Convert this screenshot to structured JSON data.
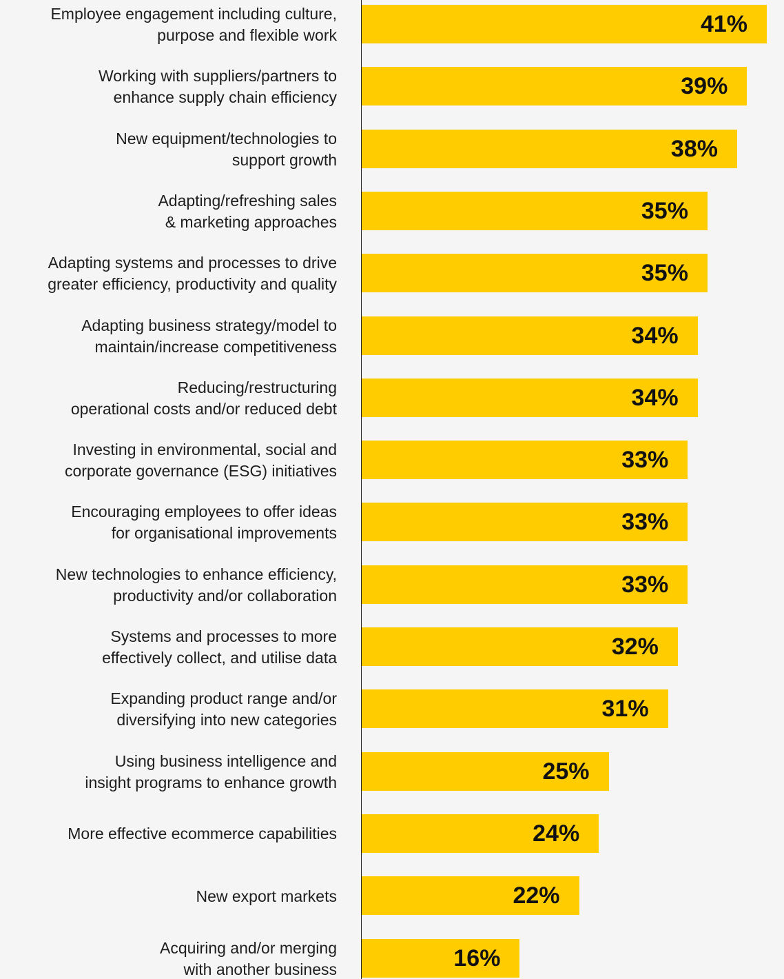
{
  "chart_data": {
    "type": "bar",
    "orientation": "horizontal",
    "categories": [
      "Employee engagement including culture,\npurpose and flexible work",
      "Working with suppliers/partners to\nenhance supply chain efficiency",
      "New equipment/technologies to\nsupport growth",
      "Adapting/refreshing sales\n& marketing approaches",
      "Adapting systems and processes to drive\ngreater efficiency, productivity and quality",
      "Adapting business strategy/model to\nmaintain/increase competitiveness",
      "Reducing/restructuring\noperational costs and/or reduced debt",
      "Investing in environmental, social and\ncorporate governance (ESG) initiatives",
      "Encouraging employees to offer ideas\nfor organisational improvements",
      "New technologies to enhance efficiency,\nproductivity and/or collaboration",
      "Systems and processes to more\neffectively collect, and utilise data",
      "Expanding product range and/or\ndiversifying into new categories",
      "Using business intelligence and\ninsight programs to enhance growth",
      "More effective ecommerce capabilities",
      "New export markets",
      "Acquiring and/or merging\nwith another business"
    ],
    "values": [
      41,
      39,
      38,
      35,
      35,
      34,
      34,
      33,
      33,
      33,
      32,
      31,
      25,
      24,
      22,
      16
    ],
    "value_labels": [
      "41%",
      "39%",
      "38%",
      "35%",
      "35%",
      "34%",
      "34%",
      "33%",
      "33%",
      "33%",
      "32%",
      "31%",
      "25%",
      "24%",
      "22%",
      "16%"
    ],
    "title": "",
    "xlabel": "",
    "ylabel": "",
    "xlim": [
      0,
      41
    ],
    "grid": false,
    "legend": "none",
    "bar_color": "#ffcc00",
    "axis_color": "#222222",
    "label_color": "#1e1e1e",
    "value_color": "#111111",
    "background": "#f5f5f5"
  }
}
